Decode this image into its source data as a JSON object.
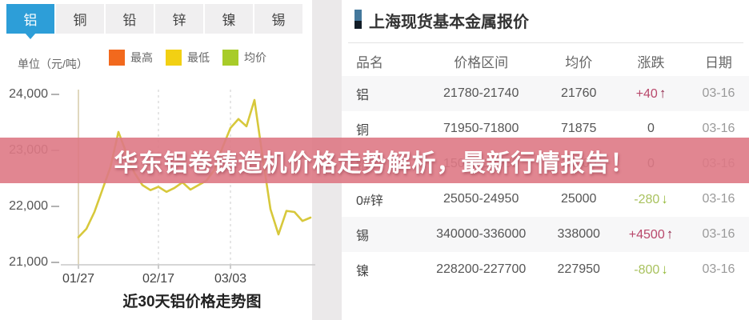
{
  "tabs": {
    "items": [
      {
        "label": "铝",
        "active": true
      },
      {
        "label": "铜",
        "active": false
      },
      {
        "label": "铅",
        "active": false
      },
      {
        "label": "锌",
        "active": false
      },
      {
        "label": "镍",
        "active": false
      },
      {
        "label": "锡",
        "active": false
      }
    ],
    "active_color": "#2d9ed8"
  },
  "chart_panel": {
    "unit_label": "单位（元/吨）",
    "legend": [
      {
        "label": "最高",
        "color": "#f2691d"
      },
      {
        "label": "最低",
        "color": "#f2d013"
      },
      {
        "label": "均价",
        "color": "#a8cc29"
      }
    ],
    "title": "近30天铝价格走势图"
  },
  "chart_data": {
    "type": "line",
    "title": "近30天铝价格走势图",
    "ylabel": "元/吨",
    "ylim": [
      21000,
      24000
    ],
    "y_ticks": [
      {
        "label": "24,000",
        "value": 24000
      },
      {
        "label": "23,000",
        "value": 23000
      },
      {
        "label": "22,000",
        "value": 22000
      },
      {
        "label": "21,000",
        "value": 21000
      }
    ],
    "x_ticks": [
      {
        "label": "01/27",
        "index": 0
      },
      {
        "label": "02/17",
        "index": 10
      },
      {
        "label": "03/03",
        "index": 19
      }
    ],
    "grid": "vertical-dashed",
    "legend_position": "top",
    "series": [
      {
        "name": "均价",
        "color": "#d7c83b",
        "values": [
          21450,
          21600,
          21900,
          22300,
          22700,
          23330,
          22950,
          22600,
          22380,
          22290,
          22350,
          22260,
          22330,
          22430,
          22300,
          22380,
          22460,
          22650,
          23050,
          23400,
          23560,
          23430,
          23900,
          22900,
          21950,
          21500,
          21920,
          21900,
          21740,
          21800
        ]
      }
    ]
  },
  "quote_panel": {
    "title": "上海现货基本金属报价",
    "columns": [
      "品名",
      "价格区间",
      "均价",
      "涨跌",
      "日期"
    ],
    "rows": [
      {
        "name": "铝",
        "range": "21780-21740",
        "avg": "21760",
        "change": "+40",
        "direction": "up",
        "date": "03-16"
      },
      {
        "name": "铜",
        "range": "71950-71800",
        "avg": "71875",
        "change": "0",
        "direction": "flat",
        "date": "03-16"
      },
      {
        "name": "铅",
        "range": "15050-14950",
        "avg": "15000",
        "change": "0",
        "direction": "flat",
        "date": "03-16"
      },
      {
        "name": "0#锌",
        "range": "25050-24950",
        "avg": "25000",
        "change": "-280",
        "direction": "down",
        "date": "03-16"
      },
      {
        "name": "锡",
        "range": "340000-336000",
        "avg": "338000",
        "change": "+4500",
        "direction": "up",
        "date": "03-16"
      },
      {
        "name": "镍",
        "range": "228200-227700",
        "avg": "227950",
        "change": "-800",
        "direction": "down",
        "date": "03-16"
      }
    ],
    "status_colors": {
      "up": "#b9486b",
      "down": "#a9c25e",
      "flat": "#555555"
    },
    "arrows": {
      "up": "↑",
      "down": "↓"
    }
  },
  "banner": {
    "text": "华东铝卷铸造机价格走势解析，最新行情报告！",
    "bg_color": "#de7985",
    "text_color": "#ffffff"
  }
}
